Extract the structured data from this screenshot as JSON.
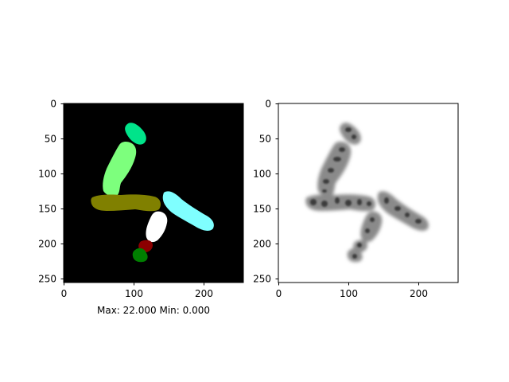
{
  "figure": {
    "background": "#ffffff"
  },
  "panels": [
    {
      "name": "label-mask",
      "image_background": "#000000",
      "x_ticks": [
        "0",
        "100",
        "200"
      ],
      "y_ticks": [
        "0",
        "50",
        "100",
        "150",
        "200",
        "250"
      ],
      "caption": "Max: 22.000 Min: 0.000",
      "region_colors": [
        "#00e48a",
        "#7dff7d",
        "#808000",
        "#7fffff",
        "#ffffff",
        "#8b0000",
        "#007f00"
      ]
    },
    {
      "name": "grayscale-image",
      "image_background": "#ffffff",
      "x_ticks": [
        "0",
        "100",
        "200"
      ],
      "y_ticks": [
        "0",
        "50",
        "100",
        "150",
        "200",
        "250"
      ],
      "caption": ""
    }
  ]
}
